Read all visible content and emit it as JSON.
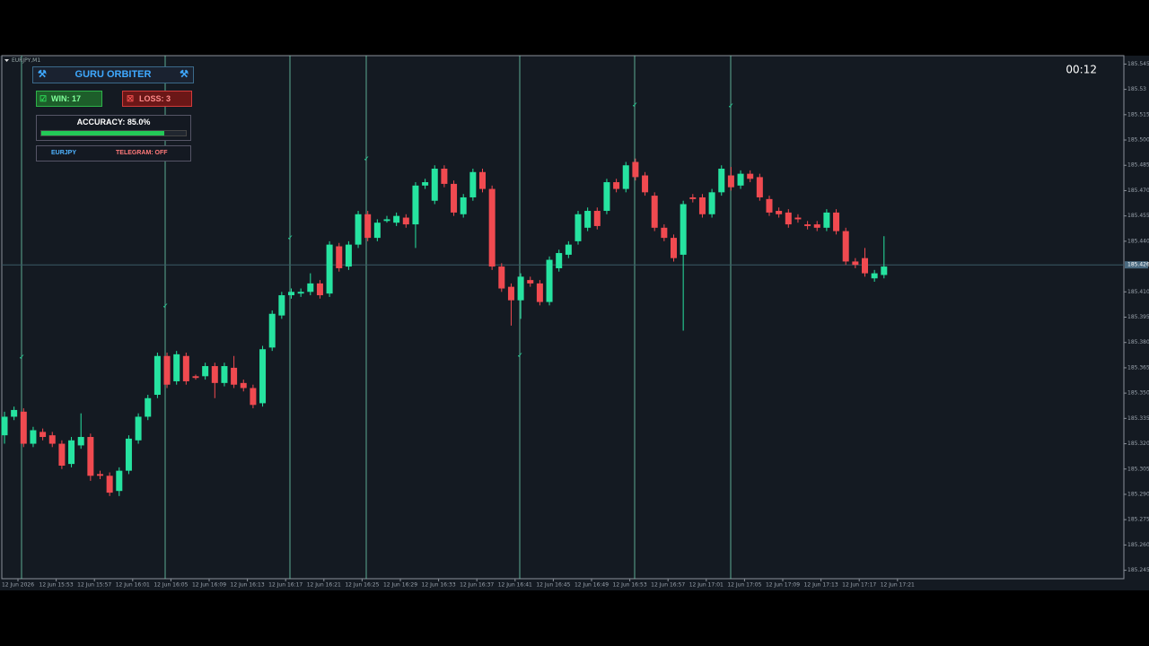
{
  "symbol": "EURJPY,M1",
  "timer": "00:12",
  "panel": {
    "title": "GURU ORBITER",
    "win": "WIN: 17",
    "loss": "LOSS: 3",
    "accuracy_label": "ACCURACY: 85.0%",
    "accuracy": 85,
    "pair": "EURJPY",
    "telegram": "TELEGRAM: OFF"
  },
  "chart_data": {
    "type": "candlestick",
    "up_color": "#26e3a0",
    "down_color": "#f04a50",
    "current_price": {
      "value": 185.426,
      "label": "185.426"
    },
    "xtick_labels": [
      "12 Jun 2026",
      "12 Jun 15:53",
      "12 Jun 15:57",
      "12 Jun 16:01",
      "12 Jun 16:05",
      "12 Jun 16:09",
      "12 Jun 16:13",
      "12 Jun 16:17",
      "12 Jun 16:21",
      "12 Jun 16:25",
      "12 Jun 16:29",
      "12 Jun 16:33",
      "12 Jun 16:37",
      "12 Jun 16:41",
      "12 Jun 16:45",
      "12 Jun 16:49",
      "12 Jun 16:53",
      "12 Jun 16:57",
      "12 Jun 17:01",
      "12 Jun 17:05",
      "12 Jun 17:09",
      "12 Jun 17:13",
      "12 Jun 17:17",
      "12 Jun 17:21"
    ],
    "ylim": [
      185.24,
      185.55
    ],
    "yticks": [
      185.545,
      185.53,
      185.515,
      {
        "value": 185.5,
        "label": "185.500"
      },
      185.485,
      {
        "value": 185.47,
        "label": "185.470"
      },
      185.455,
      {
        "value": 185.44,
        "label": "185.440"
      },
      {
        "value": 185.41,
        "label": "185.410"
      },
      185.395,
      {
        "value": 185.38,
        "label": "185.380"
      },
      185.365,
      {
        "value": 185.35,
        "label": "185.350"
      },
      185.335,
      {
        "value": 185.32,
        "label": "185.320"
      },
      185.305,
      {
        "value": 185.29,
        "label": "185.290"
      },
      185.275,
      {
        "value": 185.26,
        "label": "185.260"
      },
      185.245
    ],
    "open": [
      185.325,
      185.336,
      185.339,
      185.32,
      185.327,
      185.325,
      185.32,
      185.308,
      185.319,
      185.324,
      185.302,
      185.301,
      185.292,
      185.304,
      185.322,
      185.336,
      185.349,
      185.372,
      185.357,
      185.372,
      185.36,
      185.36,
      185.366,
      185.356,
      185.365,
      185.356,
      185.353,
      185.344,
      185.377,
      185.396,
      185.408,
      185.409,
      185.41,
      185.415,
      185.409,
      185.437,
      185.425,
      185.438,
      185.456,
      185.442,
      185.452,
      185.451,
      185.454,
      185.45,
      185.473,
      185.464,
      185.483,
      185.474,
      185.456,
      185.466,
      185.481,
      185.471,
      185.425,
      185.413,
      185.405,
      185.417,
      185.415,
      185.404,
      185.424,
      185.432,
      185.44,
      185.448,
      185.458,
      185.458,
      185.475,
      185.471,
      185.487,
      185.479,
      185.467,
      185.448,
      185.442,
      185.432,
      185.466,
      185.466,
      185.456,
      185.469,
      185.479,
      185.473,
      185.48,
      185.478,
      185.465,
      185.458,
      185.457,
      185.454,
      185.45,
      185.45,
      185.448,
      185.457,
      185.446,
      185.428,
      185.43,
      185.418,
      185.42
    ],
    "high": [
      185.339,
      185.342,
      185.341,
      185.33,
      185.329,
      185.327,
      185.322,
      185.324,
      185.338,
      185.326,
      185.304,
      185.303,
      185.306,
      185.325,
      185.338,
      185.349,
      185.374,
      185.374,
      185.375,
      185.374,
      185.361,
      185.368,
      185.368,
      185.368,
      185.372,
      185.358,
      185.355,
      185.378,
      185.399,
      185.41,
      185.412,
      185.412,
      185.421,
      185.417,
      185.44,
      185.439,
      185.44,
      185.458,
      185.458,
      185.453,
      185.455,
      185.457,
      185.456,
      185.475,
      185.477,
      185.485,
      185.485,
      185.476,
      185.468,
      185.483,
      185.483,
      185.473,
      185.427,
      185.415,
      185.421,
      185.419,
      185.417,
      185.431,
      185.435,
      185.44,
      185.458,
      185.46,
      185.46,
      185.477,
      185.477,
      185.487,
      185.489,
      185.481,
      185.469,
      185.45,
      185.444,
      185.464,
      185.468,
      185.468,
      185.471,
      185.485,
      185.484,
      185.482,
      185.482,
      185.48,
      185.467,
      185.46,
      185.459,
      185.456,
      185.452,
      185.452,
      185.459,
      185.459,
      185.448,
      185.43,
      185.436,
      185.423,
      185.443
    ],
    "low": [
      185.32,
      185.334,
      185.318,
      185.318,
      185.322,
      185.318,
      185.305,
      185.306,
      185.317,
      185.298,
      185.299,
      185.289,
      185.289,
      185.302,
      185.32,
      185.334,
      185.347,
      185.353,
      185.355,
      185.355,
      185.358,
      185.358,
      185.347,
      185.354,
      185.353,
      185.351,
      185.341,
      185.342,
      185.375,
      185.394,
      185.406,
      185.407,
      185.408,
      185.406,
      185.407,
      185.422,
      185.423,
      185.436,
      185.44,
      185.44,
      185.451,
      185.449,
      185.448,
      185.436,
      185.471,
      185.462,
      185.472,
      185.455,
      185.454,
      185.464,
      185.469,
      185.423,
      185.41,
      185.39,
      185.394,
      185.413,
      185.402,
      185.402,
      185.422,
      185.43,
      185.438,
      185.446,
      185.447,
      185.456,
      185.469,
      185.469,
      185.476,
      185.467,
      185.446,
      185.44,
      185.428,
      185.387,
      185.463,
      185.454,
      185.454,
      185.467,
      185.47,
      185.471,
      185.475,
      185.464,
      185.455,
      185.454,
      185.448,
      185.451,
      185.447,
      185.446,
      185.446,
      185.444,
      185.426,
      185.424,
      185.419,
      185.416,
      185.418
    ],
    "close": [
      185.336,
      185.34,
      185.32,
      185.328,
      185.324,
      185.32,
      185.307,
      185.322,
      185.324,
      185.301,
      185.301,
      185.291,
      185.304,
      185.323,
      185.336,
      185.347,
      185.372,
      185.355,
      185.373,
      185.357,
      185.359,
      185.366,
      185.356,
      185.366,
      185.355,
      185.353,
      185.343,
      185.376,
      185.397,
      185.408,
      185.41,
      185.41,
      185.415,
      185.408,
      185.438,
      185.424,
      185.438,
      185.456,
      185.442,
      185.451,
      185.453,
      185.455,
      185.45,
      185.473,
      185.475,
      185.483,
      185.474,
      185.457,
      185.466,
      185.481,
      185.471,
      185.425,
      185.412,
      185.405,
      185.419,
      185.415,
      185.404,
      185.429,
      185.433,
      185.438,
      185.456,
      185.458,
      185.449,
      185.475,
      185.471,
      185.485,
      185.478,
      185.469,
      185.448,
      185.442,
      185.43,
      185.462,
      185.465,
      185.456,
      185.469,
      185.483,
      185.472,
      185.48,
      185.477,
      185.466,
      185.457,
      185.456,
      185.45,
      185.453,
      185.449,
      185.448,
      185.457,
      185.446,
      185.428,
      185.426,
      185.421,
      185.421,
      185.425
    ]
  }
}
